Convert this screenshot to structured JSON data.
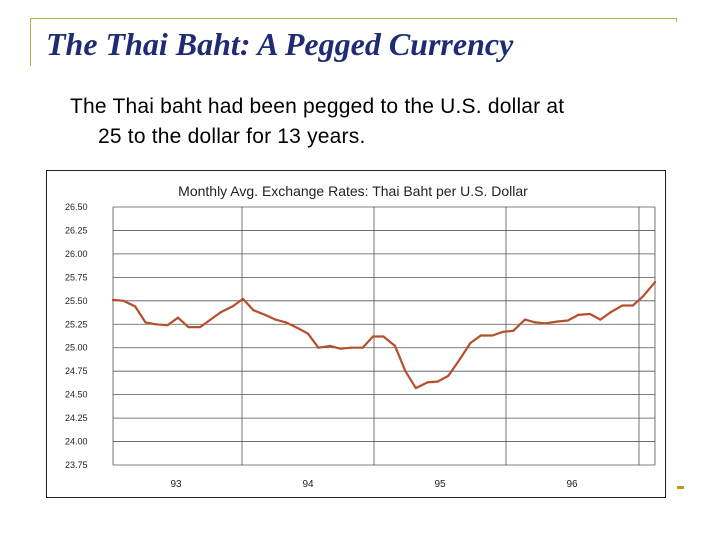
{
  "slide": {
    "title": "The Thai Baht: A Pegged Currency",
    "body_line1": "The Thai baht had been pegged to the U.S. dollar at",
    "body_line2": "25 to the dollar for 13 years."
  },
  "colors": {
    "title": "#1f2b73",
    "series_line": "#b5502a",
    "frame_accent": "#b8b23a",
    "grid": "#555555"
  },
  "chart_data": {
    "type": "line",
    "title": "Monthly Avg. Exchange Rates: Thai Baht per U.S. Dollar",
    "xlabel": "",
    "ylabel": "",
    "ylim": [
      23.75,
      26.5
    ],
    "yticks": [
      "26.50",
      "26.25",
      "26.00",
      "25.75",
      "25.50",
      "25.25",
      "25.00",
      "24.75",
      "24.50",
      "24.25",
      "24.00",
      "23.75"
    ],
    "x_tick_labels": [
      "93",
      "94",
      "95",
      "96"
    ],
    "xlim": [
      1992.75,
      1996.92
    ],
    "grid": true,
    "series": [
      {
        "x": [
          1992.75,
          1992.83,
          1992.92,
          1993.0,
          1993.08,
          1993.17,
          1993.25,
          1993.33,
          1993.42,
          1993.5,
          1993.58,
          1993.67,
          1993.75,
          1993.83,
          1993.92,
          1994.0,
          1994.08,
          1994.17,
          1994.25,
          1994.33,
          1994.42,
          1994.5,
          1994.58,
          1994.67,
          1994.75,
          1994.83,
          1994.92,
          1995.0,
          1995.08,
          1995.17,
          1995.25,
          1995.33,
          1995.42,
          1995.5,
          1995.58,
          1995.67,
          1995.75,
          1995.83,
          1995.92,
          1996.0,
          1996.08,
          1996.17,
          1996.25,
          1996.33,
          1996.42,
          1996.5,
          1996.58,
          1996.67,
          1996.75,
          1996.83,
          1996.92
        ],
        "values": [
          25.51,
          25.5,
          25.44,
          25.27,
          25.25,
          25.24,
          25.32,
          25.22,
          25.22,
          25.3,
          25.38,
          25.44,
          25.52,
          25.4,
          25.35,
          25.3,
          25.27,
          25.21,
          25.15,
          25.0,
          25.02,
          24.99,
          25.0,
          25.0,
          25.12,
          25.12,
          25.02,
          24.75,
          24.57,
          24.63,
          24.64,
          24.7,
          24.88,
          25.05,
          25.13,
          25.13,
          25.17,
          25.18,
          25.3,
          25.27,
          25.26,
          25.28,
          25.29,
          25.35,
          25.36,
          25.3,
          25.38,
          25.45,
          25.45,
          25.55,
          25.7
        ]
      }
    ]
  }
}
